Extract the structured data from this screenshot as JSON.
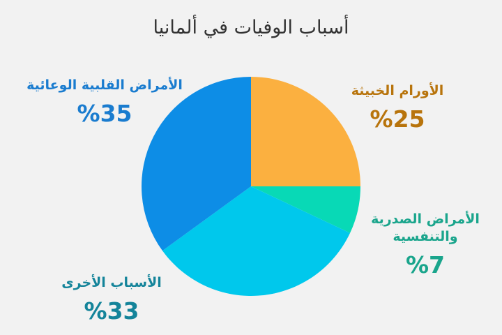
{
  "title": "أسباب الوفيات في ألمانيا",
  "chart_data": {
    "type": "pie",
    "slices": [
      {
        "name": "الأورام الخبيثة",
        "value": 25,
        "label": "%25",
        "color": "#fbb040"
      },
      {
        "name": "الأمراض الصدرية والتنفسية",
        "value": 7,
        "label": "%7",
        "color": "#08d9b6"
      },
      {
        "name": "الأسباب الأخرى",
        "value": 33,
        "label": "%33",
        "color": "#00c8ec"
      },
      {
        "name": "الأمراض القلبية الوعائية",
        "value": 35,
        "label": "%35",
        "color": "#0d8de6"
      }
    ],
    "label_colors": [
      "#b8740c",
      "#1aa58c",
      "#14849a",
      "#1a7ccf"
    ]
  }
}
